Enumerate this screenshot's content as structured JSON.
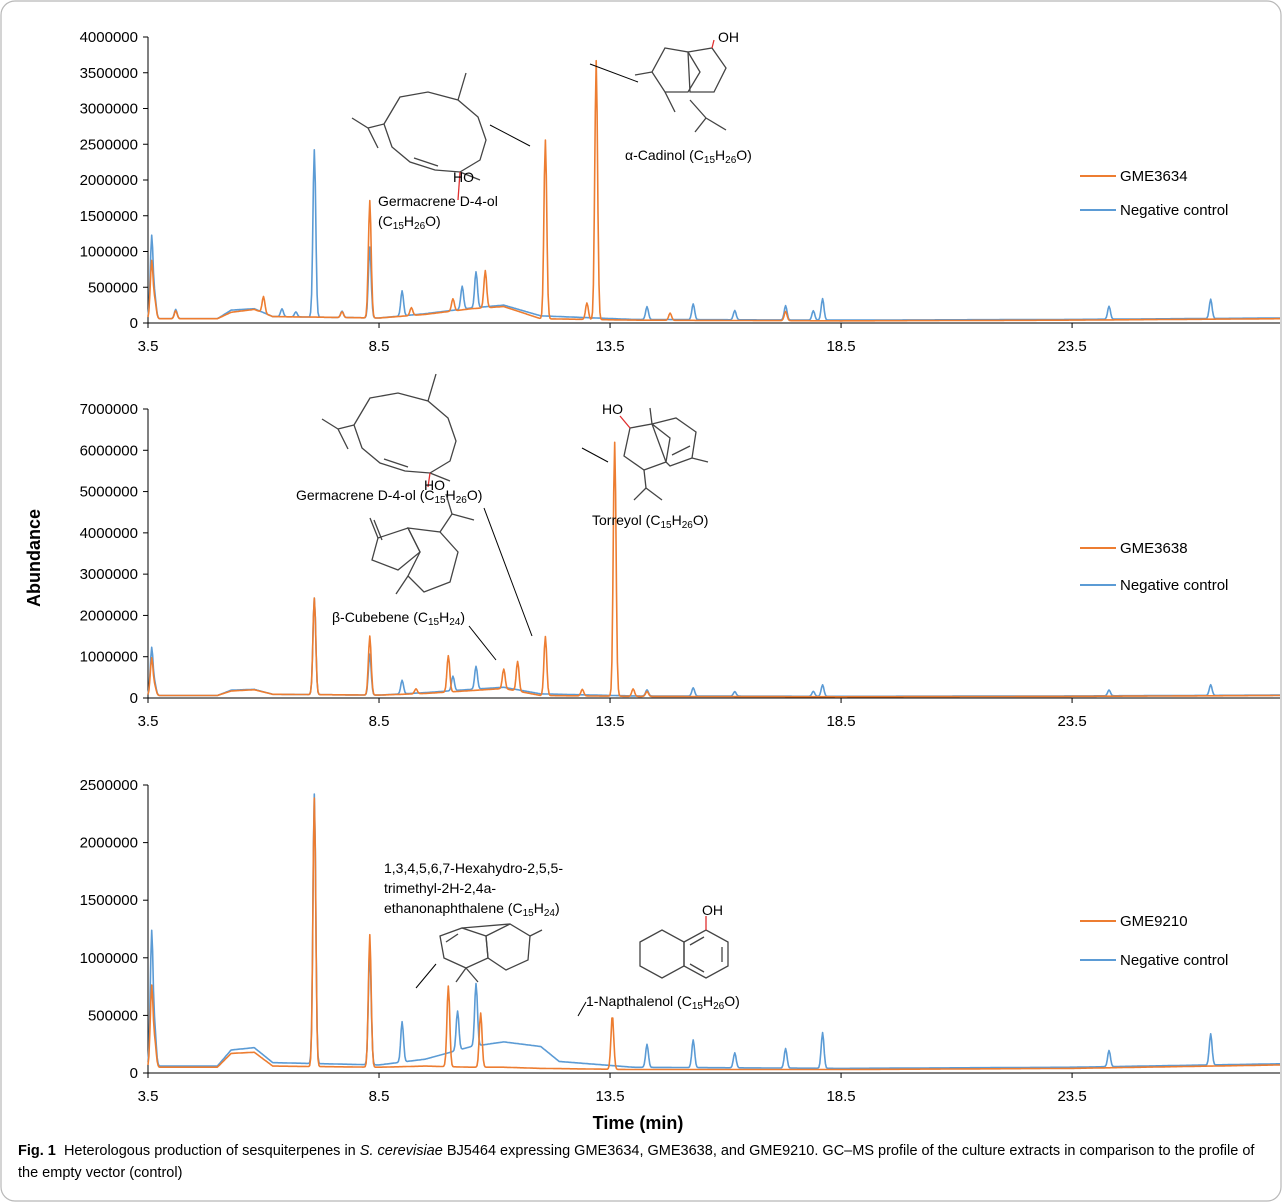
{
  "chart_data": [
    {
      "type": "line",
      "ylabel": "Abundance",
      "xlabel": "",
      "xlim": [
        3.5,
        28.0
      ],
      "ylim": [
        0,
        4000000
      ],
      "xticks": [
        "3.5",
        "8.5",
        "13.5",
        "18.5",
        "23.5"
      ],
      "yticks": [
        "0",
        "500000",
        "1000000",
        "1500000",
        "2000000",
        "2500000",
        "3000000",
        "3500000",
        "4000000"
      ],
      "legend_position": "right",
      "grid": false,
      "series": [
        {
          "name": "GME3634",
          "color": "#ED7D31",
          "baseline": [
            [
              3.5,
              60000
            ],
            [
              5.0,
              60000
            ],
            [
              5.3,
              150000
            ],
            [
              5.8,
              190000
            ],
            [
              6.2,
              90000
            ],
            [
              8.5,
              70000
            ],
            [
              9.5,
              120000
            ],
            [
              10.5,
              200000
            ],
            [
              11.2,
              230000
            ],
            [
              12.0,
              60000
            ],
            [
              14.0,
              40000
            ],
            [
              18.5,
              30000
            ],
            [
              23.5,
              40000
            ],
            [
              28.0,
              60000
            ]
          ],
          "peaks": [
            [
              3.58,
              800000
            ],
            [
              3.65,
              230000
            ],
            [
              4.1,
              110000
            ],
            [
              6.0,
              230000
            ],
            [
              7.7,
              80000
            ],
            [
              8.3,
              1640000
            ],
            [
              9.2,
              110000
            ],
            [
              10.1,
              170000
            ],
            [
              10.8,
              520000
            ],
            [
              12.1,
              2500000
            ],
            [
              13.0,
              230000
            ],
            [
              13.2,
              3620000
            ],
            [
              14.8,
              100000
            ],
            [
              17.3,
              130000
            ]
          ]
        },
        {
          "name": "Negative control",
          "color": "#5B9BD5",
          "baseline": [
            [
              3.5,
              60000
            ],
            [
              5.0,
              60000
            ],
            [
              5.3,
              180000
            ],
            [
              5.8,
              200000
            ],
            [
              6.2,
              90000
            ],
            [
              8.5,
              70000
            ],
            [
              9.5,
              130000
            ],
            [
              10.5,
              210000
            ],
            [
              11.2,
              250000
            ],
            [
              12.0,
              100000
            ],
            [
              14.0,
              50000
            ],
            [
              18.5,
              40000
            ],
            [
              23.5,
              50000
            ],
            [
              28.0,
              70000
            ]
          ],
          "peaks": [
            [
              3.58,
              1150000
            ],
            [
              3.65,
              280000
            ],
            [
              4.1,
              130000
            ],
            [
              6.4,
              110000
            ],
            [
              6.7,
              70000
            ],
            [
              7.1,
              2340000
            ],
            [
              7.7,
              90000
            ],
            [
              8.3,
              990000
            ],
            [
              9.0,
              350000
            ],
            [
              10.3,
              320000
            ],
            [
              10.6,
              500000
            ],
            [
              14.3,
              180000
            ],
            [
              15.3,
              220000
            ],
            [
              16.2,
              130000
            ],
            [
              17.3,
              200000
            ],
            [
              18.1,
              300000
            ],
            [
              17.9,
              130000
            ],
            [
              24.3,
              180000
            ],
            [
              26.5,
              270000
            ]
          ]
        }
      ],
      "annotations": [
        {
          "name": "Germacrene D-4-ol",
          "formula": "(C15H26O)"
        },
        {
          "name": "α-Cadinol",
          "formula": "(C15H26O)"
        }
      ]
    },
    {
      "type": "line",
      "ylabel": "Abundance",
      "xlabel": "",
      "xlim": [
        3.5,
        28.0
      ],
      "ylim": [
        0,
        7000000
      ],
      "xticks": [
        "3.5",
        "8.5",
        "13.5",
        "18.5",
        "23.5"
      ],
      "yticks": [
        "0",
        "1000000",
        "2000000",
        "3000000",
        "4000000",
        "5000000",
        "6000000",
        "7000000"
      ],
      "legend_position": "right",
      "grid": false,
      "series": [
        {
          "name": "GME3638",
          "color": "#ED7D31",
          "baseline": [
            [
              3.5,
              60000
            ],
            [
              5.0,
              60000
            ],
            [
              5.3,
              170000
            ],
            [
              5.8,
              200000
            ],
            [
              6.2,
              90000
            ],
            [
              8.5,
              70000
            ],
            [
              9.5,
              110000
            ],
            [
              10.5,
              180000
            ],
            [
              11.2,
              230000
            ],
            [
              12.0,
              60000
            ],
            [
              14.0,
              40000
            ],
            [
              18.5,
              30000
            ],
            [
              23.5,
              40000
            ],
            [
              28.0,
              60000
            ]
          ],
          "peaks": [
            [
              3.58,
              900000
            ],
            [
              3.65,
              200000
            ],
            [
              7.1,
              2340000
            ],
            [
              8.3,
              1430000
            ],
            [
              9.3,
              120000
            ],
            [
              10.0,
              880000
            ],
            [
              11.2,
              470000
            ],
            [
              11.5,
              720000
            ],
            [
              12.1,
              1430000
            ],
            [
              12.9,
              160000
            ],
            [
              13.6,
              6150000
            ],
            [
              14.0,
              180000
            ],
            [
              14.3,
              120000
            ]
          ]
        },
        {
          "name": "Negative control",
          "color": "#5B9BD5",
          "baseline": [
            [
              3.5,
              60000
            ],
            [
              5.0,
              60000
            ],
            [
              5.3,
              190000
            ],
            [
              5.8,
              210000
            ],
            [
              6.2,
              90000
            ],
            [
              8.5,
              70000
            ],
            [
              9.5,
              130000
            ],
            [
              10.5,
              210000
            ],
            [
              11.2,
              260000
            ],
            [
              12.0,
              100000
            ],
            [
              14.0,
              50000
            ],
            [
              18.5,
              40000
            ],
            [
              23.5,
              50000
            ],
            [
              28.0,
              70000
            ]
          ],
          "peaks": [
            [
              3.58,
              1150000
            ],
            [
              3.65,
              260000
            ],
            [
              7.1,
              2340000
            ],
            [
              8.3,
              990000
            ],
            [
              9.0,
              330000
            ],
            [
              10.1,
              350000
            ],
            [
              10.6,
              550000
            ],
            [
              14.3,
              150000
            ],
            [
              15.3,
              200000
            ],
            [
              16.2,
              110000
            ],
            [
              17.9,
              120000
            ],
            [
              18.1,
              280000
            ],
            [
              24.3,
              140000
            ],
            [
              26.5,
              260000
            ]
          ]
        }
      ],
      "annotations": [
        {
          "name": "Germacrene D-4-ol",
          "formula": "(C15H26O)"
        },
        {
          "name": "Torreyol",
          "formula": "(C15H26O)"
        },
        {
          "name": "β-Cubebene",
          "formula": "(C15H24)"
        }
      ]
    },
    {
      "type": "line",
      "ylabel": "Abundance",
      "xlabel": "Time (min)",
      "xlim": [
        3.5,
        28.0
      ],
      "ylim": [
        0,
        2500000
      ],
      "xticks": [
        "3.5",
        "8.5",
        "13.5",
        "18.5",
        "23.5"
      ],
      "yticks": [
        "0",
        "500000",
        "1000000",
        "1500000",
        "2000000",
        "2500000"
      ],
      "legend_position": "right",
      "grid": false,
      "series": [
        {
          "name": "GME9210",
          "color": "#ED7D31",
          "baseline": [
            [
              3.5,
              50000
            ],
            [
              5.0,
              50000
            ],
            [
              5.3,
              170000
            ],
            [
              5.8,
              180000
            ],
            [
              6.2,
              60000
            ],
            [
              8.5,
              50000
            ],
            [
              9.5,
              60000
            ],
            [
              10.5,
              50000
            ],
            [
              11.2,
              50000
            ],
            [
              12.0,
              40000
            ],
            [
              14.0,
              30000
            ],
            [
              18.5,
              30000
            ],
            [
              23.5,
              40000
            ],
            [
              28.0,
              70000
            ]
          ],
          "peaks": [
            [
              3.58,
              700000
            ],
            [
              3.65,
              200000
            ],
            [
              7.1,
              2330000
            ],
            [
              8.3,
              1150000
            ],
            [
              10.0,
              700000
            ],
            [
              10.7,
              470000
            ],
            [
              13.55,
              470000
            ]
          ]
        },
        {
          "name": "Negative control",
          "color": "#5B9BD5",
          "baseline": [
            [
              3.5,
              60000
            ],
            [
              5.0,
              60000
            ],
            [
              5.3,
              200000
            ],
            [
              5.8,
              220000
            ],
            [
              6.2,
              90000
            ],
            [
              8.5,
              70000
            ],
            [
              9.5,
              120000
            ],
            [
              10.5,
              230000
            ],
            [
              11.2,
              270000
            ],
            [
              12.0,
              230000
            ],
            [
              12.4,
              100000
            ],
            [
              14.0,
              50000
            ],
            [
              18.5,
              40000
            ],
            [
              23.5,
              50000
            ],
            [
              28.0,
              80000
            ]
          ],
          "peaks": [
            [
              3.58,
              1160000
            ],
            [
              3.65,
              290000
            ],
            [
              7.1,
              2340000
            ],
            [
              8.3,
              990000
            ],
            [
              9.0,
              350000
            ],
            [
              10.2,
              340000
            ],
            [
              10.6,
              540000
            ],
            [
              14.3,
              200000
            ],
            [
              15.3,
              240000
            ],
            [
              16.2,
              130000
            ],
            [
              17.3,
              170000
            ],
            [
              18.1,
              310000
            ],
            [
              24.3,
              140000
            ],
            [
              26.5,
              270000
            ]
          ]
        }
      ],
      "annotations": [
        {
          "name": "1,3,4,5,6,7-Hexahydro-2,5,5-",
          "line2": "trimethyl-2H-2,4a-",
          "line3": "ethanonaphthalene",
          "formula": "(C15H24)"
        },
        {
          "name": "1-Napthalenol",
          "formula": "(C15H26O)"
        }
      ]
    }
  ],
  "caption": {
    "fig": "Fig. 1",
    "text1": "Heterologous production of sesquiterpenes in",
    "species": "S. cerevisiae",
    "text2": "BJ5464 expressing GME3634, GME3638, and GME9210. GC–MS profile of the culture extracts in comparison to the profile of the empty vector (control)"
  }
}
